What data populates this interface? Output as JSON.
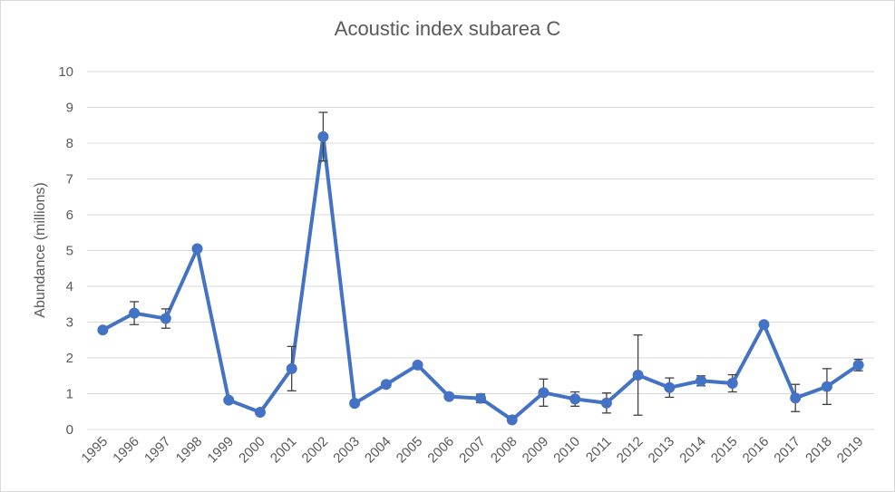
{
  "chart_data": {
    "type": "line",
    "title": "Acoustic index subarea C",
    "xlabel": "",
    "ylabel": "Abundance (millions)",
    "ylim": [
      0,
      10
    ],
    "yticks": [
      0,
      1,
      2,
      3,
      4,
      5,
      6,
      7,
      8,
      9,
      10
    ],
    "grid": true,
    "legend": "none",
    "categories": [
      "1995",
      "1996",
      "1997",
      "1998",
      "1999",
      "2000",
      "2001",
      "2002",
      "2003",
      "2004",
      "2005",
      "2006",
      "2007",
      "2008",
      "2009",
      "2010",
      "2011",
      "2012",
      "2013",
      "2014",
      "2015",
      "2016",
      "2017",
      "2018",
      "2019"
    ],
    "series": [
      {
        "values": [
          2.78,
          3.25,
          3.1,
          5.05,
          0.82,
          0.48,
          1.7,
          8.18,
          0.73,
          1.26,
          1.8,
          0.92,
          0.87,
          0.27,
          1.03,
          0.85,
          0.74,
          1.52,
          1.17,
          1.36,
          1.29,
          2.93,
          0.88,
          1.2,
          1.8
        ],
        "error_low": [
          0.0,
          0.32,
          0.27,
          0.0,
          0.0,
          0.0,
          0.62,
          0.68,
          0.0,
          0.0,
          0.0,
          0.0,
          0.12,
          0.0,
          0.38,
          0.2,
          0.28,
          1.12,
          0.27,
          0.14,
          0.24,
          0.0,
          0.38,
          0.5,
          0.16
        ],
        "error_high": [
          0.0,
          0.32,
          0.27,
          0.0,
          0.0,
          0.0,
          0.62,
          0.68,
          0.0,
          0.0,
          0.0,
          0.0,
          0.12,
          0.0,
          0.38,
          0.2,
          0.28,
          1.12,
          0.27,
          0.14,
          0.24,
          0.0,
          0.38,
          0.5,
          0.16
        ]
      }
    ],
    "colors": {
      "line": "#4472c4",
      "error_bar": "#404040",
      "grid": "#d9d9d9",
      "text": "#595959"
    }
  }
}
